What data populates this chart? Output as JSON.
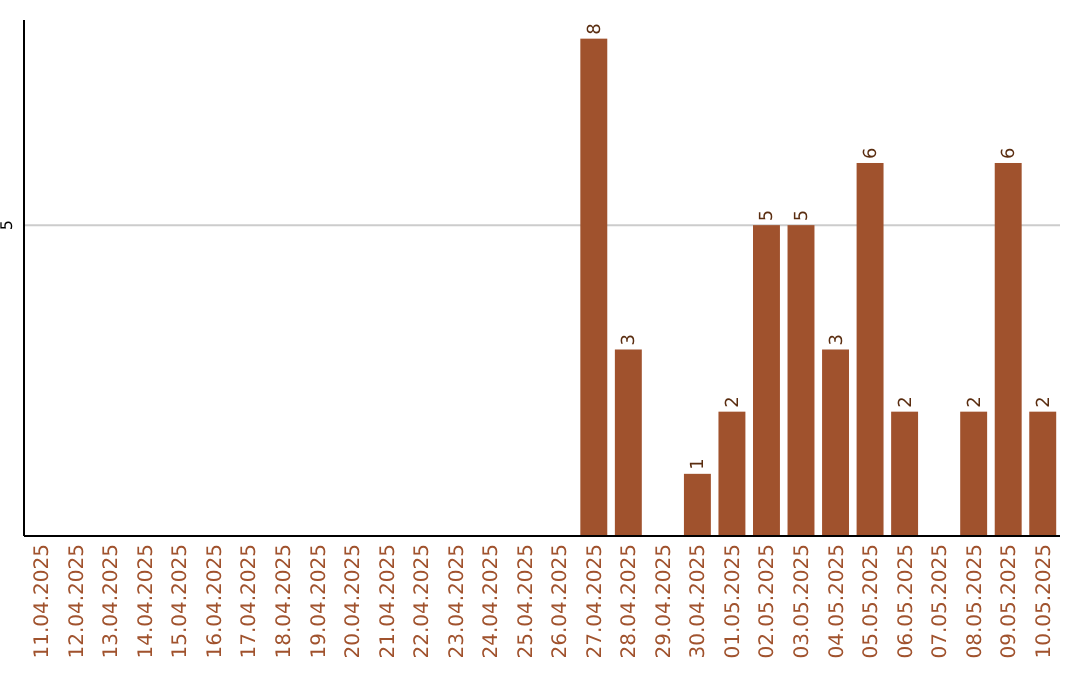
{
  "chart_data": {
    "type": "bar",
    "categories": [
      "11.04.2025",
      "12.04.2025",
      "13.04.2025",
      "14.04.2025",
      "15.04.2025",
      "16.04.2025",
      "17.04.2025",
      "18.04.2025",
      "19.04.2025",
      "20.04.2025",
      "21.04.2025",
      "22.04.2025",
      "23.04.2025",
      "24.04.2025",
      "25.04.2025",
      "26.04.2025",
      "27.04.2025",
      "28.04.2025",
      "29.04.2025",
      "30.04.2025",
      "01.05.2025",
      "02.05.2025",
      "03.05.2025",
      "04.05.2025",
      "05.05.2025",
      "06.05.2025",
      "07.05.2025",
      "08.05.2025",
      "09.05.2025",
      "10.05.2025"
    ],
    "values": [
      null,
      null,
      null,
      null,
      null,
      null,
      null,
      null,
      null,
      null,
      null,
      null,
      null,
      null,
      null,
      null,
      8,
      3,
      null,
      1,
      2,
      5,
      5,
      3,
      6,
      2,
      null,
      2,
      6,
      2
    ],
    "color": "#a0522d",
    "ylim": [
      0,
      8.3
    ],
    "yticks": [
      5
    ],
    "grid": "y",
    "data_labels": true
  }
}
